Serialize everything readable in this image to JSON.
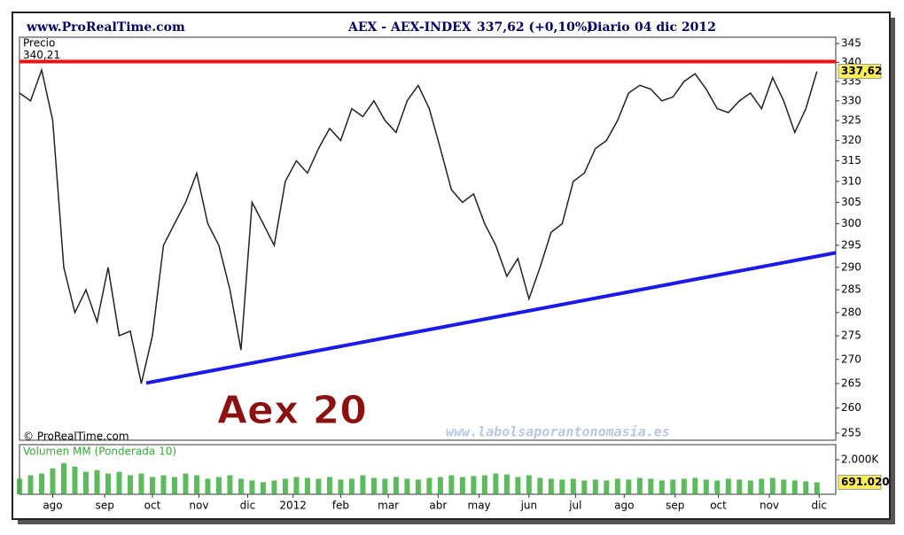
{
  "header": {
    "site": "www.ProRealTime.com",
    "instrument": "AEX - AEX-INDEX",
    "quote": "337,62 (+0,10%)",
    "period": "Diario",
    "date": "04 dic 2012"
  },
  "chart_data": [
    {
      "type": "line",
      "y_label": "Precio",
      "copyright": "© ProRealTime.com",
      "annotation": "Aex 20",
      "watermark": "www.labolsaporantonomasia.es",
      "log_scale": true,
      "color": "#222222",
      "x": [
        0,
        1,
        2,
        3,
        4,
        5,
        6,
        7,
        8,
        9,
        10,
        11,
        12,
        13,
        14,
        15,
        16,
        17,
        18,
        19,
        20,
        21,
        22,
        23,
        24,
        25,
        26,
        27,
        28,
        29,
        30,
        31,
        32,
        33,
        34,
        35,
        36,
        37,
        38,
        39,
        40,
        41,
        42,
        43,
        44,
        45,
        46,
        47,
        48,
        49,
        50,
        51,
        52,
        53,
        54,
        55,
        56,
        57,
        58,
        59,
        60,
        61,
        62,
        63,
        64,
        65,
        66,
        67,
        68,
        69,
        70,
        71,
        72
      ],
      "values": [
        332,
        330,
        338,
        325,
        290,
        280,
        285,
        278,
        290,
        275,
        276,
        265,
        275,
        295,
        300,
        305,
        312,
        300,
        295,
        285,
        272,
        305,
        300,
        295,
        310,
        315,
        312,
        318,
        323,
        320,
        328,
        326,
        330,
        325,
        322,
        330,
        334,
        328,
        318,
        308,
        305,
        307,
        300,
        295,
        288,
        292,
        283,
        290,
        298,
        300,
        310,
        312,
        318,
        320,
        325,
        332,
        334,
        333,
        330,
        331,
        335,
        337,
        333,
        328,
        327,
        330,
        332,
        328,
        336,
        330,
        322,
        328,
        337.62
      ],
      "xlim": [
        0,
        73.7
      ],
      "ylim": [
        253.6,
        346.7
      ],
      "yticks": [
        255,
        260,
        265,
        270,
        275,
        280,
        285,
        290,
        295,
        300,
        305,
        310,
        315,
        320,
        325,
        330,
        335,
        340,
        345
      ],
      "resistance": {
        "value": 340.21,
        "label": "340,21",
        "color": "#ee1111"
      },
      "trendline": {
        "x": [
          11.44,
          73.7
        ],
        "y": [
          265.1,
          293.3
        ],
        "color": "#1a1aee"
      },
      "current": {
        "value": 337.62,
        "label": "337,62"
      }
    },
    {
      "type": "bar",
      "title": "Volumen MM (Ponderada 10)",
      "color": "#33aa33",
      "x": [
        0,
        1,
        2,
        3,
        4,
        5,
        6,
        7,
        8,
        9,
        10,
        11,
        12,
        13,
        14,
        15,
        16,
        17,
        18,
        19,
        20,
        21,
        22,
        23,
        24,
        25,
        26,
        27,
        28,
        29,
        30,
        31,
        32,
        33,
        34,
        35,
        36,
        37,
        38,
        39,
        40,
        41,
        42,
        43,
        44,
        45,
        46,
        47,
        48,
        49,
        50,
        51,
        52,
        53,
        54,
        55,
        56,
        57,
        58,
        59,
        60,
        61,
        62,
        63,
        64,
        65,
        66,
        67,
        68,
        69,
        70,
        71,
        72
      ],
      "values": [
        900000,
        1100000,
        1200000,
        1500000,
        1800000,
        1600000,
        1300000,
        1400000,
        1200000,
        1300000,
        1100000,
        1200000,
        1000000,
        1100000,
        1000000,
        1200000,
        1100000,
        900000,
        1000000,
        1100000,
        900000,
        800000,
        700000,
        800000,
        900000,
        1000000,
        950000,
        900000,
        1000000,
        850000,
        900000,
        1100000,
        950000,
        900000,
        1000000,
        900000,
        850000,
        950000,
        1000000,
        1100000,
        1000000,
        1050000,
        1100000,
        1200000,
        1150000,
        1000000,
        1100000,
        950000,
        900000,
        850000,
        900000,
        800000,
        850000,
        800000,
        900000,
        850000,
        950000,
        900000,
        800000,
        850000,
        900000,
        950000,
        850000,
        800000,
        900000,
        850000,
        800000,
        900000,
        950000,
        850000,
        800000,
        750000,
        691020
      ],
      "xlim": [
        0,
        73.7
      ],
      "ylim": [
        0,
        2872000
      ],
      "yticks": [
        {
          "value": 2000000,
          "label": "2.000K"
        }
      ],
      "current": {
        "value": 691020,
        "label": "691.020"
      },
      "xticks": [
        {
          "value": 3,
          "label": "ago"
        },
        {
          "value": 7.7,
          "label": "sep"
        },
        {
          "value": 12,
          "label": "oct"
        },
        {
          "value": 16.2,
          "label": "nov"
        },
        {
          "value": 20.6,
          "label": "dic"
        },
        {
          "value": 24.7,
          "label": "2012"
        },
        {
          "value": 29,
          "label": "feb"
        },
        {
          "value": 33.3,
          "label": "mar"
        },
        {
          "value": 37.8,
          "label": "abr"
        },
        {
          "value": 41.5,
          "label": "may"
        },
        {
          "value": 46,
          "label": "jun"
        },
        {
          "value": 50.2,
          "label": "jul"
        },
        {
          "value": 54.6,
          "label": "ago"
        },
        {
          "value": 59.2,
          "label": "sep"
        },
        {
          "value": 63.1,
          "label": "oct"
        },
        {
          "value": 67.7,
          "label": "nov"
        },
        {
          "value": 72.2,
          "label": "dic"
        }
      ]
    }
  ]
}
